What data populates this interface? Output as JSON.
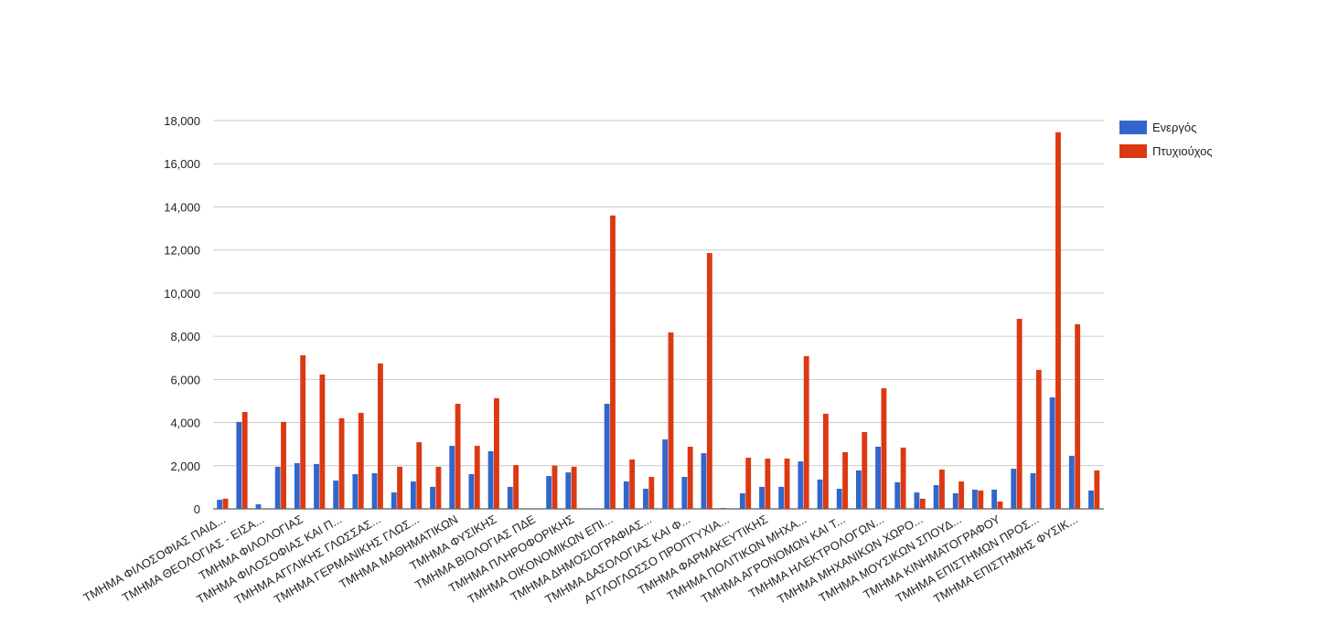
{
  "chart_data": {
    "type": "bar",
    "categories": [
      "ΤΜΗΜΑ ΦΙΛΟΣΟΦΙΑΣ ΠΑΙΔ...",
      null,
      "ΤΜΗΜΑ ΘΕΟΛΟΓΙΑΣ - ΕΙΣΑ...",
      null,
      "ΤΜΗΜΑ ΦΙΛΟΛΟΓΙΑΣ",
      null,
      "ΤΜΗΜΑ ΦΙΛΟΣΟΦΙΑΣ ΚΑΙ Π...",
      null,
      "ΤΜΗΜΑ ΑΓΓΛΙΚΗΣ ΓΛΩΣΣΑΣ...",
      null,
      "ΤΜΗΜΑ ΓΕΡΜΑΝΙΚΗΣ ΓΛΩΣ...",
      null,
      "ΤΜΗΜΑ ΜΑΘΗΜΑΤΙΚΩΝ",
      null,
      "ΤΜΗΜΑ ΦΥΣΙΚΗΣ",
      null,
      "ΤΜΗΜΑ ΒΙΟΛΟΓΙΑΣ ΠΔΕ",
      null,
      "ΤΜΗΜΑ ΠΛΗΡΟΦΟΡΙΚΗΣ",
      null,
      "ΤΜΗΜΑ ΟΙΚΟΝΟΜΙΚΩΝ ΕΠΙ...",
      null,
      "ΤΜΗΜΑ ΔΗΜΟΣΙΟΓΡΑΦΙΑΣ...",
      null,
      "ΤΜΗΜΑ ΔΑΣΟΛΟΓΙΑΣ ΚΑΙ Φ...",
      null,
      "ΑΓΓΛΟΓΛΩΣΣΟ ΠΡΟΠΤΥΧΙΑ...",
      null,
      "ΤΜΗΜΑ ΦΑΡΜΑΚΕΥΤΙΚΗΣ",
      null,
      "ΤΜΗΜΑ ΠΟΛΙΤΙΚΩΝ ΜΗΧΑ...",
      null,
      "ΤΜΗΜΑ ΑΓΡΟΝΟΜΩΝ ΚΑΙ Τ...",
      null,
      "ΤΜΗΜΑ ΗΛΕΚΤΡΟΛΟΓΩΝ...",
      null,
      "ΤΜΗΜΑ ΜΗΧΑΝΙΚΩΝ ΧΩΡΟ...",
      null,
      "ΤΜΗΜΑ ΜΟΥΣΙΚΩΝ ΣΠΟΥΔ...",
      null,
      "ΤΜΗΜΑ ΚΙΝΗΜΑΤΟΓΡΑΦΟΥ",
      null,
      "ΤΜΗΜΑ ΕΠΙΣΤΗΜΩΝ ΠΡΟΣ...",
      null,
      "ΤΜΗΜΑ ΕΠΙΣΤΗΜΗΣ ΦΥΣΙΚ...",
      null
    ],
    "series": [
      {
        "name": "Ενεργός",
        "color": "#3366cc",
        "values": [
          420,
          4030,
          210,
          1950,
          2120,
          2080,
          1310,
          1610,
          1650,
          760,
          1270,
          1020,
          2920,
          1610,
          2670,
          1020,
          0,
          1520,
          1690,
          0,
          4870,
          1270,
          930,
          3220,
          1480,
          2580,
          40,
          720,
          1020,
          1020,
          2200,
          1360,
          930,
          1780,
          2880,
          1230,
          760,
          1100,
          720,
          890,
          890,
          1860,
          1650,
          5170,
          2460,
          850
        ]
      },
      {
        "name": "Πτυχιούχος",
        "color": "#dc3912",
        "values": [
          470,
          4490,
          0,
          4030,
          7120,
          6230,
          4200,
          4450,
          6740,
          1950,
          3090,
          1950,
          4870,
          2920,
          5130,
          2030,
          0,
          2010,
          1950,
          0,
          13600,
          2290,
          1480,
          8180,
          2880,
          11860,
          0,
          2370,
          2330,
          2330,
          7080,
          4410,
          2630,
          3560,
          5590,
          2840,
          470,
          1820,
          1270,
          850,
          340,
          8810,
          6440,
          17460,
          8560,
          1780
        ]
      }
    ],
    "ylim": [
      0,
      18000
    ],
    "yticks": [
      0,
      {
        "value": 2000,
        "label": "2,000"
      },
      {
        "value": 4000,
        "label": "4,000"
      },
      {
        "value": 6000,
        "label": "6,000"
      },
      {
        "value": 8000,
        "label": "8,000"
      },
      {
        "value": 10000,
        "label": "10,000"
      },
      {
        "value": 12000,
        "label": "12,000"
      },
      {
        "value": 14000,
        "label": "14,000"
      },
      {
        "value": 16000,
        "label": "16,000"
      },
      {
        "value": 18000,
        "label": "18,000"
      }
    ],
    "grid": true,
    "legend": "right"
  }
}
